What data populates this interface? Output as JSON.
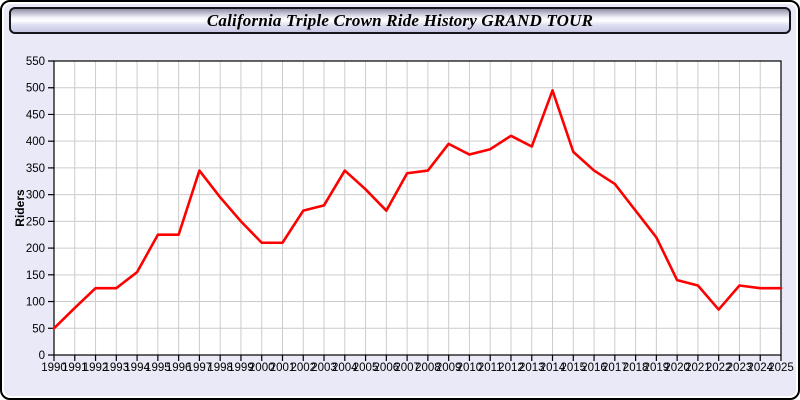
{
  "title_bar": {
    "title": "California Triple Crown Ride History GRAND TOUR"
  },
  "colors": {
    "page_background": "#e9e9f7",
    "plot_background": "#ffffff",
    "gridline": "#cccccc",
    "axis": "#000000",
    "line": "#ff0000",
    "tick_label": "#000000"
  },
  "chart_data": {
    "type": "line",
    "title": "California Triple Crown Ride History GRAND TOUR",
    "xlabel": "",
    "ylabel": "Riders",
    "legend": null,
    "grid": true,
    "ylim": [
      0,
      550
    ],
    "ytick_step": 50,
    "ytick_labels": [
      "0",
      "50",
      "100",
      "150",
      "200",
      "250",
      "300",
      "350",
      "400",
      "450",
      "500",
      "550"
    ],
    "x": [
      1990,
      1991,
      1992,
      1993,
      1994,
      1995,
      1996,
      1997,
      1998,
      1999,
      2000,
      2001,
      2002,
      2003,
      2004,
      2005,
      2006,
      2007,
      2008,
      2009,
      2010,
      2011,
      2012,
      2013,
      2014,
      2015,
      2016,
      2017,
      2018,
      2019,
      2020,
      2021,
      2022,
      2023,
      2024,
      2025
    ],
    "series": [
      {
        "name": "Riders",
        "color": "#ff0000",
        "values": [
          50,
          88,
          125,
          125,
          155,
          225,
          225,
          345,
          295,
          250,
          210,
          210,
          270,
          280,
          345,
          310,
          270,
          340,
          345,
          395,
          375,
          385,
          410,
          390,
          495,
          380,
          345,
          320,
          270,
          220,
          140,
          130,
          85,
          130,
          125,
          125
        ]
      }
    ]
  }
}
